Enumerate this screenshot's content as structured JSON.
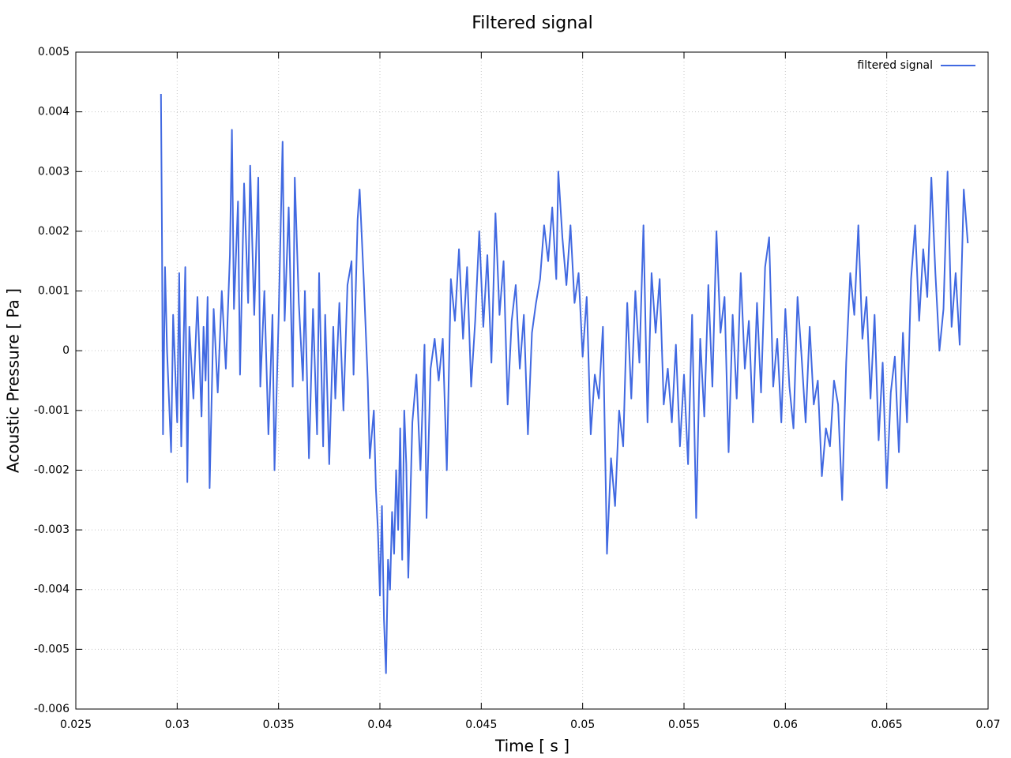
{
  "chart_data": {
    "type": "line",
    "title": "Filtered signal",
    "x_label": "Time [ s ]",
    "y_label": "Acoustic Pressure [ Pa ]",
    "xlim": [
      0.025,
      0.07
    ],
    "xticks": [
      0.025,
      0.03,
      0.035,
      0.04,
      0.045,
      0.05,
      0.055,
      0.06,
      0.065,
      0.07
    ],
    "ylim": [
      -0.006,
      0.005
    ],
    "yticks": [
      -0.006,
      -0.005,
      -0.004,
      -0.003,
      -0.002,
      -0.001,
      0,
      0.001,
      0.002,
      0.003,
      0.004,
      0.005
    ],
    "grid": true,
    "legend": "top-right",
    "x": [
      0.0292,
      0.02925,
      0.0293,
      0.0294,
      0.0295,
      0.0297,
      0.0298,
      0.03,
      0.0301,
      0.0302,
      0.0304,
      0.0305,
      0.0306,
      0.0308,
      0.031,
      0.0312,
      0.0313,
      0.0314,
      0.0315,
      0.0316,
      0.0318,
      0.032,
      0.0322,
      0.0324,
      0.0326,
      0.0327,
      0.0328,
      0.033,
      0.0331,
      0.0333,
      0.0335,
      0.0336,
      0.0338,
      0.034,
      0.0341,
      0.0343,
      0.0345,
      0.0347,
      0.0348,
      0.035,
      0.0352,
      0.0353,
      0.0355,
      0.0357,
      0.0358,
      0.036,
      0.0362,
      0.0363,
      0.0365,
      0.0367,
      0.0369,
      0.037,
      0.0372,
      0.0373,
      0.0375,
      0.0377,
      0.0378,
      0.038,
      0.0382,
      0.0384,
      0.0386,
      0.0387,
      0.0389,
      0.039,
      0.0392,
      0.0394,
      0.0395,
      0.0397,
      0.0398,
      0.0399,
      0.04,
      0.0401,
      0.0402,
      0.0403,
      0.0404,
      0.0405,
      0.0406,
      0.0407,
      0.0408,
      0.0409,
      0.041,
      0.0411,
      0.0412,
      0.0413,
      0.0414,
      0.0416,
      0.0418,
      0.042,
      0.0422,
      0.0423,
      0.0425,
      0.0427,
      0.0429,
      0.0431,
      0.0433,
      0.0435,
      0.0437,
      0.0439,
      0.0441,
      0.0443,
      0.0445,
      0.0447,
      0.0449,
      0.0451,
      0.0453,
      0.0455,
      0.0457,
      0.0459,
      0.0461,
      0.0463,
      0.0465,
      0.0467,
      0.0469,
      0.0471,
      0.0473,
      0.0475,
      0.0477,
      0.0479,
      0.0481,
      0.0483,
      0.0485,
      0.0487,
      0.0488,
      0.049,
      0.0492,
      0.0494,
      0.0496,
      0.0498,
      0.05,
      0.0502,
      0.0504,
      0.0506,
      0.0508,
      0.051,
      0.0512,
      0.0514,
      0.0516,
      0.0518,
      0.052,
      0.0522,
      0.0524,
      0.0526,
      0.0528,
      0.053,
      0.0532,
      0.0534,
      0.0536,
      0.0538,
      0.054,
      0.0542,
      0.0544,
      0.0546,
      0.0548,
      0.055,
      0.0552,
      0.0554,
      0.0556,
      0.0558,
      0.056,
      0.0562,
      0.0564,
      0.0566,
      0.0568,
      0.057,
      0.0572,
      0.0574,
      0.0576,
      0.0578,
      0.058,
      0.0582,
      0.0584,
      0.0586,
      0.0588,
      0.059,
      0.0592,
      0.0594,
      0.0596,
      0.0598,
      0.06,
      0.0602,
      0.0604,
      0.0606,
      0.0608,
      0.061,
      0.0612,
      0.0614,
      0.0616,
      0.0618,
      0.062,
      0.0622,
      0.0624,
      0.0626,
      0.0628,
      0.063,
      0.0632,
      0.0634,
      0.0636,
      0.0638,
      0.064,
      0.0642,
      0.0644,
      0.0646,
      0.0648,
      0.065,
      0.0652,
      0.0654,
      0.0656,
      0.0658,
      0.066,
      0.0662,
      0.0664,
      0.0666,
      0.0668,
      0.067,
      0.0672,
      0.0674,
      0.0676,
      0.0678,
      0.068,
      0.0682,
      0.0684,
      0.0686,
      0.0688,
      0.069
    ],
    "series": [
      {
        "name": "filtered signal",
        "color": "#4169e1",
        "values": [
          0.0043,
          0.0019,
          -0.0014,
          0.0014,
          0.0,
          -0.0017,
          0.0006,
          -0.0012,
          0.0013,
          -0.0016,
          0.0014,
          -0.0022,
          0.0004,
          -0.0008,
          0.0009,
          -0.0011,
          0.0004,
          -0.0005,
          0.0009,
          -0.0023,
          0.0007,
          -0.0007,
          0.001,
          -0.0003,
          0.0016,
          0.0037,
          0.0007,
          0.0025,
          -0.0004,
          0.0028,
          0.0008,
          0.0031,
          0.0006,
          0.0029,
          -0.0006,
          0.001,
          -0.0014,
          0.0006,
          -0.002,
          0.0005,
          0.0035,
          0.0005,
          0.0024,
          -0.0006,
          0.0029,
          0.0008,
          -0.0005,
          0.001,
          -0.0018,
          0.0007,
          -0.0014,
          0.0013,
          -0.0016,
          0.0006,
          -0.0019,
          0.0004,
          -0.0008,
          0.0008,
          -0.001,
          0.0011,
          0.0015,
          -0.0004,
          0.0022,
          0.0027,
          0.0012,
          -0.0005,
          -0.0018,
          -0.001,
          -0.0023,
          -0.003,
          -0.0041,
          -0.0026,
          -0.0045,
          -0.0054,
          -0.0035,
          -0.004,
          -0.0027,
          -0.0034,
          -0.002,
          -0.003,
          -0.0013,
          -0.0035,
          -0.001,
          -0.0019,
          -0.0038,
          -0.0012,
          -0.0004,
          -0.002,
          0.0001,
          -0.0028,
          -0.0003,
          0.0002,
          -0.0005,
          0.0002,
          -0.002,
          0.0012,
          0.0005,
          0.0017,
          0.0002,
          0.0014,
          -0.0006,
          0.0005,
          0.002,
          0.0004,
          0.0016,
          -0.0002,
          0.0023,
          0.0006,
          0.0015,
          -0.0009,
          0.0005,
          0.0011,
          -0.0003,
          0.0006,
          -0.0014,
          0.0003,
          0.0008,
          0.0012,
          0.0021,
          0.0015,
          0.0024,
          0.0012,
          0.003,
          0.0019,
          0.0011,
          0.0021,
          0.0008,
          0.0013,
          -0.0001,
          0.0009,
          -0.0014,
          -0.0004,
          -0.0008,
          0.0004,
          -0.0034,
          -0.0018,
          -0.0026,
          -0.001,
          -0.0016,
          0.0008,
          -0.0008,
          0.001,
          -0.0002,
          0.0021,
          -0.0012,
          0.0013,
          0.0003,
          0.0012,
          -0.0009,
          -0.0003,
          -0.0012,
          0.0001,
          -0.0016,
          -0.0004,
          -0.0019,
          0.0006,
          -0.0028,
          0.0002,
          -0.0011,
          0.0011,
          -0.0006,
          0.002,
          0.0003,
          0.0009,
          -0.0017,
          0.0006,
          -0.0008,
          0.0013,
          -0.0003,
          0.0005,
          -0.0012,
          0.0008,
          -0.0007,
          0.0014,
          0.0019,
          -0.0006,
          0.0002,
          -0.0012,
          0.0007,
          -0.0006,
          -0.0013,
          0.0009,
          -0.0001,
          -0.0012,
          0.0004,
          -0.0009,
          -0.0005,
          -0.0021,
          -0.0013,
          -0.0016,
          -0.0005,
          -0.0009,
          -0.0025,
          -0.0002,
          0.0013,
          0.0006,
          0.0021,
          0.0002,
          0.0009,
          -0.0008,
          0.0006,
          -0.0015,
          -0.0002,
          -0.0023,
          -0.0007,
          -0.0001,
          -0.0017,
          0.0003,
          -0.0012,
          0.0012,
          0.0021,
          0.0005,
          0.0017,
          0.0009,
          0.0029,
          0.0013,
          0.0,
          0.0007,
          0.003,
          0.0004,
          0.0013,
          0.0001,
          0.0027,
          0.0018
        ]
      }
    ]
  }
}
